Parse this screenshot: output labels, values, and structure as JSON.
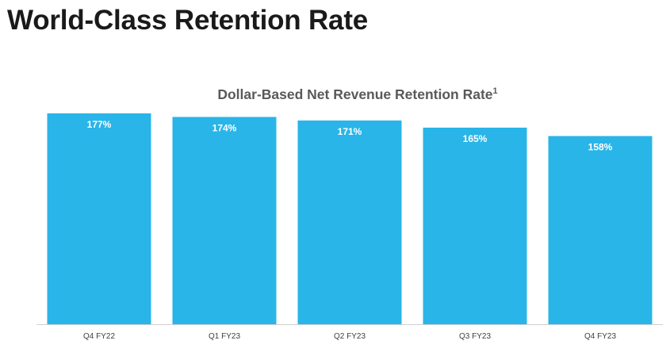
{
  "page": {
    "title": "World-Class Retention Rate"
  },
  "chart_data": {
    "type": "bar",
    "title": "Dollar-Based Net Revenue Retention Rate",
    "title_footnote": "1",
    "categories": [
      "Q4 FY22",
      "Q1 FY23",
      "Q2 FY23",
      "Q3 FY23",
      "Q4 FY23"
    ],
    "values": [
      177,
      174,
      171,
      165,
      158
    ],
    "value_labels": [
      "177%",
      "174%",
      "171%",
      "165%",
      "158%"
    ],
    "xlabel": "",
    "ylabel": "",
    "ylim": [
      0,
      177
    ],
    "grid": false,
    "legend": "none",
    "colors": {
      "bar": "#29b5e8",
      "baseline": "#d0d0d0"
    }
  }
}
